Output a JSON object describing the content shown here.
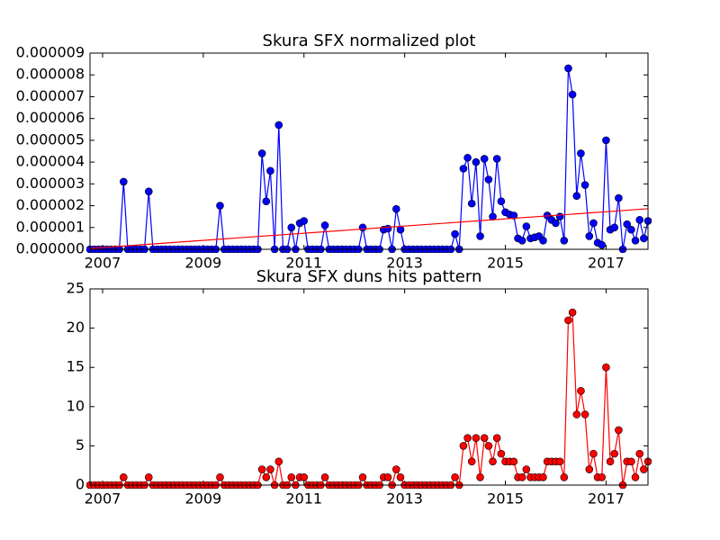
{
  "chart_data": [
    {
      "type": "line",
      "title": "Skura SFX normalized plot",
      "x": [
        2006.75,
        2006.833,
        2006.917,
        2007,
        2007.083,
        2007.167,
        2007.25,
        2007.333,
        2007.417,
        2007.5,
        2007.583,
        2007.667,
        2007.75,
        2007.833,
        2007.917,
        2008,
        2008.083,
        2008.167,
        2008.25,
        2008.333,
        2008.417,
        2008.5,
        2008.583,
        2008.667,
        2008.75,
        2008.833,
        2008.917,
        2009,
        2009.083,
        2009.167,
        2009.25,
        2009.333,
        2009.417,
        2009.5,
        2009.583,
        2009.667,
        2009.75,
        2009.833,
        2009.917,
        2010,
        2010.083,
        2010.167,
        2010.25,
        2010.333,
        2010.417,
        2010.5,
        2010.583,
        2010.667,
        2010.75,
        2010.833,
        2010.917,
        2011,
        2011.083,
        2011.167,
        2011.25,
        2011.333,
        2011.417,
        2011.5,
        2011.583,
        2011.667,
        2011.75,
        2011.833,
        2011.917,
        2012,
        2012.083,
        2012.167,
        2012.25,
        2012.333,
        2012.417,
        2012.5,
        2012.583,
        2012.667,
        2012.75,
        2012.833,
        2012.917,
        2013,
        2013.083,
        2013.167,
        2013.25,
        2013.333,
        2013.417,
        2013.5,
        2013.583,
        2013.667,
        2013.75,
        2013.833,
        2013.917,
        2014,
        2014.083,
        2014.167,
        2014.25,
        2014.333,
        2014.417,
        2014.5,
        2014.583,
        2014.667,
        2014.75,
        2014.833,
        2014.917,
        2015,
        2015.083,
        2015.167,
        2015.25,
        2015.333,
        2015.417,
        2015.5,
        2015.583,
        2015.667,
        2015.75,
        2015.833,
        2015.917,
        2016,
        2016.083,
        2016.167,
        2016.25,
        2016.333,
        2016.417,
        2016.5,
        2016.583,
        2016.667,
        2016.75,
        2016.833,
        2016.917,
        2017,
        2017.083,
        2017.167,
        2017.25,
        2017.333,
        2017.417,
        2017.5,
        2017.583,
        2017.667,
        2017.75,
        2017.833
      ],
      "series": [
        {
          "color": "#0000ff",
          "marker": true,
          "values": [
            0,
            0,
            0,
            0,
            0,
            0,
            0,
            0,
            3.1e-06,
            0,
            0,
            0,
            0,
            0,
            2.65e-06,
            0,
            0,
            0,
            0,
            0,
            0,
            0,
            0,
            0,
            0,
            0,
            0,
            0,
            0,
            0,
            0,
            2e-06,
            0,
            0,
            0,
            0,
            0,
            0,
            0,
            0,
            0,
            4.4e-06,
            2.2e-06,
            3.6e-06,
            0,
            5.7e-06,
            0,
            0,
            1e-06,
            0,
            1.2e-06,
            1.3e-06,
            0,
            0,
            0,
            0,
            1.1e-06,
            0,
            0,
            0,
            0,
            0,
            0,
            0,
            0,
            1e-06,
            0,
            0,
            0,
            0,
            9e-07,
            9.5e-07,
            0,
            1.85e-06,
            9e-07,
            0,
            0,
            0,
            0,
            0,
            0,
            0,
            0,
            0,
            0,
            0,
            0,
            7e-07,
            0,
            3.7e-06,
            4.2e-06,
            2.1e-06,
            4e-06,
            6e-07,
            4.15e-06,
            3.2e-06,
            1.5e-06,
            4.15e-06,
            2.2e-06,
            1.7e-06,
            1.6e-06,
            1.55e-06,
            5e-07,
            4e-07,
            1.05e-06,
            5e-07,
            5.5e-07,
            6e-07,
            4e-07,
            1.55e-06,
            1.35e-06,
            1.2e-06,
            1.5e-06,
            4e-07,
            8.3e-06,
            7.1e-06,
            2.45e-06,
            4.4e-06,
            2.95e-06,
            6e-07,
            1.2e-06,
            3e-07,
            2e-07,
            5e-06,
            9e-07,
            1e-06,
            2.35e-06,
            0,
            1.15e-06,
            9e-07,
            4e-07,
            1.35e-06,
            5e-07,
            1.3e-06
          ]
        },
        {
          "color": "#ff0000",
          "marker": false,
          "x": [
            2006.75,
            2017.833
          ],
          "values": [
            4e-08,
            1.86e-06
          ]
        }
      ],
      "xlim": [
        2006.75,
        2017.833
      ],
      "xticks": [
        2007,
        2009,
        2011,
        2013,
        2015,
        2017
      ],
      "ylim": [
        0,
        9e-06
      ],
      "yticks": [
        {
          "value": 0,
          "label": "0.000000"
        },
        {
          "value": 1e-06,
          "label": "0.000001"
        },
        {
          "value": 2e-06,
          "label": "0.000002"
        },
        {
          "value": 3e-06,
          "label": "0.000003"
        },
        {
          "value": 4e-06,
          "label": "0.000004"
        },
        {
          "value": 5e-06,
          "label": "0.000005"
        },
        {
          "value": 6e-06,
          "label": "0.000006"
        },
        {
          "value": 7e-06,
          "label": "0.000007"
        },
        {
          "value": 8e-06,
          "label": "0.000008"
        },
        {
          "value": 9e-06,
          "label": "0.000009"
        }
      ]
    },
    {
      "type": "line",
      "title": "Skura SFX duns hits pattern",
      "x": [
        2006.75,
        2006.833,
        2006.917,
        2007,
        2007.083,
        2007.167,
        2007.25,
        2007.333,
        2007.417,
        2007.5,
        2007.583,
        2007.667,
        2007.75,
        2007.833,
        2007.917,
        2008,
        2008.083,
        2008.167,
        2008.25,
        2008.333,
        2008.417,
        2008.5,
        2008.583,
        2008.667,
        2008.75,
        2008.833,
        2008.917,
        2009,
        2009.083,
        2009.167,
        2009.25,
        2009.333,
        2009.417,
        2009.5,
        2009.583,
        2009.667,
        2009.75,
        2009.833,
        2009.917,
        2010,
        2010.083,
        2010.167,
        2010.25,
        2010.333,
        2010.417,
        2010.5,
        2010.583,
        2010.667,
        2010.75,
        2010.833,
        2010.917,
        2011,
        2011.083,
        2011.167,
        2011.25,
        2011.333,
        2011.417,
        2011.5,
        2011.583,
        2011.667,
        2011.75,
        2011.833,
        2011.917,
        2012,
        2012.083,
        2012.167,
        2012.25,
        2012.333,
        2012.417,
        2012.5,
        2012.583,
        2012.667,
        2012.75,
        2012.833,
        2012.917,
        2013,
        2013.083,
        2013.167,
        2013.25,
        2013.333,
        2013.417,
        2013.5,
        2013.583,
        2013.667,
        2013.75,
        2013.833,
        2013.917,
        2014,
        2014.083,
        2014.167,
        2014.25,
        2014.333,
        2014.417,
        2014.5,
        2014.583,
        2014.667,
        2014.75,
        2014.833,
        2014.917,
        2015,
        2015.083,
        2015.167,
        2015.25,
        2015.333,
        2015.417,
        2015.5,
        2015.583,
        2015.667,
        2015.75,
        2015.833,
        2015.917,
        2016,
        2016.083,
        2016.167,
        2016.25,
        2016.333,
        2016.417,
        2016.5,
        2016.583,
        2016.667,
        2016.75,
        2016.833,
        2016.917,
        2017,
        2017.083,
        2017.167,
        2017.25,
        2017.333,
        2017.417,
        2017.5,
        2017.583,
        2017.667,
        2017.75,
        2017.833
      ],
      "series": [
        {
          "color": "#ff0000",
          "marker": true,
          "values": [
            0,
            0,
            0,
            0,
            0,
            0,
            0,
            0,
            1,
            0,
            0,
            0,
            0,
            0,
            1,
            0,
            0,
            0,
            0,
            0,
            0,
            0,
            0,
            0,
            0,
            0,
            0,
            0,
            0,
            0,
            0,
            1,
            0,
            0,
            0,
            0,
            0,
            0,
            0,
            0,
            0,
            2,
            1,
            2,
            0,
            3,
            0,
            0,
            1,
            0,
            1,
            1,
            0,
            0,
            0,
            0,
            1,
            0,
            0,
            0,
            0,
            0,
            0,
            0,
            0,
            1,
            0,
            0,
            0,
            0,
            1,
            1,
            0,
            2,
            1,
            0,
            0,
            0,
            0,
            0,
            0,
            0,
            0,
            0,
            0,
            0,
            0,
            1,
            0,
            5,
            6,
            3,
            6,
            1,
            6,
            5,
            3,
            6,
            4,
            3,
            3,
            3,
            1,
            1,
            2,
            1,
            1,
            1,
            1,
            3,
            3,
            3,
            3,
            1,
            21,
            22,
            9,
            12,
            9,
            2,
            4,
            1,
            1,
            15,
            3,
            4,
            7,
            0,
            3,
            3,
            1,
            4,
            2,
            3
          ]
        }
      ],
      "xlim": [
        2006.75,
        2017.833
      ],
      "xticks": [
        2007,
        2009,
        2011,
        2013,
        2015,
        2017
      ],
      "ylim": [
        0,
        25
      ],
      "yticks": [
        0,
        5,
        10,
        15,
        20,
        25
      ]
    }
  ]
}
